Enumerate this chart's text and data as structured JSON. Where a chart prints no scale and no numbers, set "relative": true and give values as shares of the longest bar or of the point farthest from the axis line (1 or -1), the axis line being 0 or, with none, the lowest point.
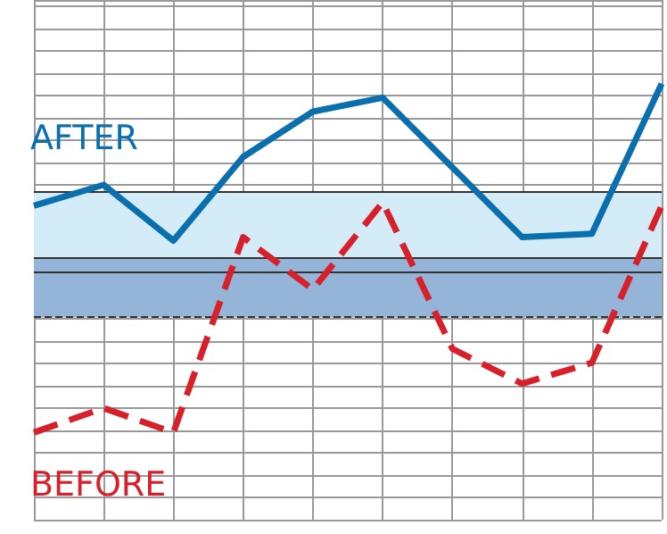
{
  "chart_data": {
    "type": "line",
    "relative": true,
    "grid": true,
    "marker": "none",
    "categories": [
      null,
      null,
      null,
      null,
      null,
      null,
      null,
      null,
      null,
      null
    ],
    "series": [
      {
        "name": "AFTER",
        "color": "#0a6fad",
        "line_style": "solid",
        "values": [
          0.65,
          0.71,
          0.55,
          0.79,
          0.92,
          0.96,
          0.76,
          0.56,
          0.57,
          1
        ]
      },
      {
        "name": "BEFORE",
        "color": "#d7202a",
        "line_style": "dashed",
        "values": [
          0,
          0.07,
          0,
          0.56,
          0.41,
          0.66,
          0.24,
          0.14,
          0.2,
          0.65
        ]
      }
    ],
    "bands": [
      {
        "axis": "y",
        "from": 0.5,
        "to": 0.69,
        "color": "#d3ecf8"
      },
      {
        "axis": "y",
        "from": 0.33,
        "to": 0.5,
        "color": "#94b4d8"
      }
    ],
    "ref_lines": [
      {
        "axis": "y",
        "value": 0.69,
        "color": "#333333",
        "line_style": "solid"
      },
      {
        "axis": "y",
        "value": 0.5,
        "color": "#333333",
        "line_style": "solid"
      },
      {
        "axis": "y",
        "value": 0.46,
        "color": "#333333",
        "line_style": "solid"
      },
      {
        "axis": "y",
        "value": 0.33,
        "color": "#333333",
        "line_style": "dashed"
      }
    ]
  }
}
